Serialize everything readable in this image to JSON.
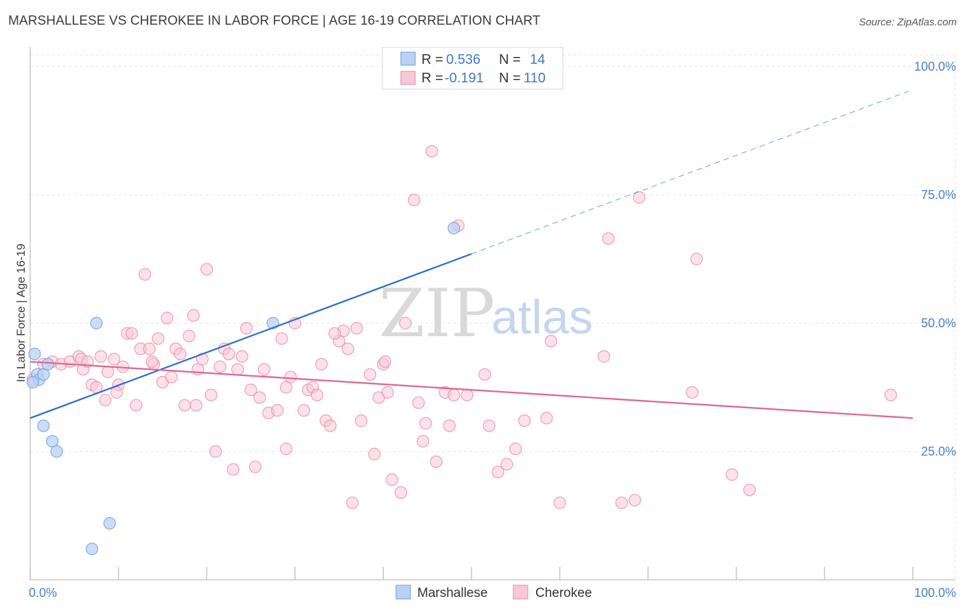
{
  "header": {
    "title": "MARSHALLESE VS CHEROKEE IN LABOR FORCE | AGE 16-19 CORRELATION CHART",
    "source": "Source: ZipAtlas.com"
  },
  "watermark": {
    "zip": "ZIP",
    "atlas": "atlas"
  },
  "colors": {
    "marshallese": "#6a9be0",
    "marshallese_fill": "#b9d2f4",
    "cherokee": "#e98aa8",
    "cherokee_fill": "#f8c8d6",
    "marshallese_line": "#2f6fcf",
    "cherokee_line": "#e0678f",
    "accent_text": "#3f78c8"
  },
  "legend": {
    "rows": [
      {
        "r_label": "R = ",
        "r_value": "0.536",
        "n_label": "N = ",
        "n_value": "14"
      },
      {
        "r_label": "R = ",
        "r_value": "-0.191",
        "n_label": "N = ",
        "n_value": "110"
      }
    ]
  },
  "bottom_legend": [
    "Marshallese",
    "Cherokee"
  ],
  "chart_data": {
    "type": "scatter",
    "title": "MARSHALLESE VS CHEROKEE IN LABOR FORCE | AGE 16-19 CORRELATION CHART",
    "xlabel": "",
    "ylabel": "In Labor Force | Age 16-19",
    "xlim": [
      0,
      100
    ],
    "ylim": [
      0,
      100
    ],
    "x_tick_labels": [
      "0.0%",
      "100.0%"
    ],
    "y_tick_labels": [
      "25.0%",
      "50.0%",
      "75.0%",
      "100.0%"
    ],
    "y_ticks": [
      25,
      50,
      75,
      100
    ],
    "grid": true,
    "legend_position": "top-center",
    "series": [
      {
        "name": "Marshallese",
        "points": [
          [
            0.5,
            44
          ],
          [
            0.8,
            40
          ],
          [
            1.0,
            39
          ],
          [
            1.5,
            40
          ],
          [
            2.0,
            42
          ],
          [
            1.5,
            30
          ],
          [
            2.5,
            27
          ],
          [
            3.0,
            25
          ],
          [
            7.5,
            50
          ],
          [
            27.5,
            50
          ],
          [
            48.0,
            68.5
          ],
          [
            9.0,
            11
          ],
          [
            7.0,
            6
          ],
          [
            0.3,
            38.5
          ]
        ],
        "trend": {
          "x0": 0,
          "y0": 31.5,
          "x1": 50,
          "y1": 63.5,
          "dashed_to_x": 100,
          "dashed_to_y": 95.5
        }
      },
      {
        "name": "Cherokee",
        "points": [
          [
            0.3,
            39
          ],
          [
            1.5,
            42
          ],
          [
            2.5,
            42.5
          ],
          [
            3.5,
            42
          ],
          [
            4.5,
            42.5
          ],
          [
            5.5,
            43.5
          ],
          [
            6.0,
            41
          ],
          [
            5.8,
            43
          ],
          [
            7.0,
            38
          ],
          [
            7.5,
            37.5
          ],
          [
            8.0,
            43.5
          ],
          [
            8.5,
            35
          ],
          [
            8.8,
            40.5
          ],
          [
            9.5,
            43
          ],
          [
            10.0,
            38
          ],
          [
            10.5,
            41.5
          ],
          [
            11.0,
            48
          ],
          [
            11.5,
            48
          ],
          [
            12.0,
            34
          ],
          [
            12.5,
            45
          ],
          [
            13.0,
            59.5
          ],
          [
            13.5,
            45
          ],
          [
            14.0,
            42
          ],
          [
            14.5,
            47
          ],
          [
            15.0,
            38.5
          ],
          [
            15.5,
            51
          ],
          [
            16.0,
            39.5
          ],
          [
            16.5,
            45
          ],
          [
            17.0,
            44
          ],
          [
            17.5,
            34
          ],
          [
            18.0,
            47.5
          ],
          [
            18.5,
            51.5
          ],
          [
            19.0,
            41
          ],
          [
            19.5,
            43
          ],
          [
            20.0,
            60.5
          ],
          [
            20.5,
            36
          ],
          [
            21.0,
            25
          ],
          [
            21.5,
            41.5
          ],
          [
            22.0,
            45
          ],
          [
            22.5,
            44
          ],
          [
            23.0,
            21.5
          ],
          [
            23.5,
            41
          ],
          [
            24.0,
            43.5
          ],
          [
            25.0,
            37
          ],
          [
            25.5,
            22
          ],
          [
            26.0,
            35.5
          ],
          [
            26.5,
            41
          ],
          [
            27.0,
            32.5
          ],
          [
            28.0,
            33
          ],
          [
            28.5,
            47
          ],
          [
            29.0,
            25.5
          ],
          [
            29.5,
            39.5
          ],
          [
            30.0,
            50
          ],
          [
            31.0,
            33
          ],
          [
            31.5,
            37
          ],
          [
            32.0,
            37.5
          ],
          [
            32.5,
            36
          ],
          [
            33.0,
            42
          ],
          [
            33.5,
            31
          ],
          [
            34.0,
            30
          ],
          [
            35.0,
            46.5
          ],
          [
            35.5,
            48.5
          ],
          [
            36.0,
            45
          ],
          [
            37.0,
            49
          ],
          [
            37.5,
            31
          ],
          [
            38.5,
            40
          ],
          [
            39.0,
            24.5
          ],
          [
            39.5,
            35.5
          ],
          [
            40.0,
            42
          ],
          [
            40.5,
            36.5
          ],
          [
            41.0,
            19.5
          ],
          [
            42.0,
            17
          ],
          [
            42.5,
            50
          ],
          [
            43.5,
            74
          ],
          [
            44.0,
            34.5
          ],
          [
            44.5,
            27
          ],
          [
            45.5,
            83.5
          ],
          [
            46.0,
            23
          ],
          [
            47.0,
            36.5
          ],
          [
            47.5,
            30
          ],
          [
            48.0,
            36
          ],
          [
            48.5,
            69
          ],
          [
            49.5,
            36
          ],
          [
            51.5,
            40
          ],
          [
            52.0,
            30
          ],
          [
            53.0,
            21
          ],
          [
            54.0,
            22.5
          ],
          [
            55.0,
            25.5
          ],
          [
            56.0,
            31
          ],
          [
            58.5,
            31.5
          ],
          [
            59.0,
            46.5
          ],
          [
            60.0,
            15
          ],
          [
            65.0,
            43.5
          ],
          [
            65.5,
            66.5
          ],
          [
            67.0,
            15
          ],
          [
            68.5,
            15.5
          ],
          [
            69.0,
            74.5
          ],
          [
            75.0,
            36.5
          ],
          [
            75.5,
            62.5
          ],
          [
            79.5,
            20.5
          ],
          [
            81.5,
            17.5
          ],
          [
            97.5,
            36
          ],
          [
            6.5,
            42.5
          ],
          [
            13.8,
            42.5
          ],
          [
            24.5,
            49
          ],
          [
            34.5,
            48
          ],
          [
            36.5,
            15
          ],
          [
            29.0,
            37.5
          ],
          [
            9.8,
            36.5
          ],
          [
            18.8,
            34
          ],
          [
            44.8,
            30.5
          ],
          [
            40.2,
            42.5
          ]
        ],
        "trend": {
          "x0": 0,
          "y0": 42.5,
          "x1": 100,
          "y1": 31.5
        }
      }
    ]
  }
}
